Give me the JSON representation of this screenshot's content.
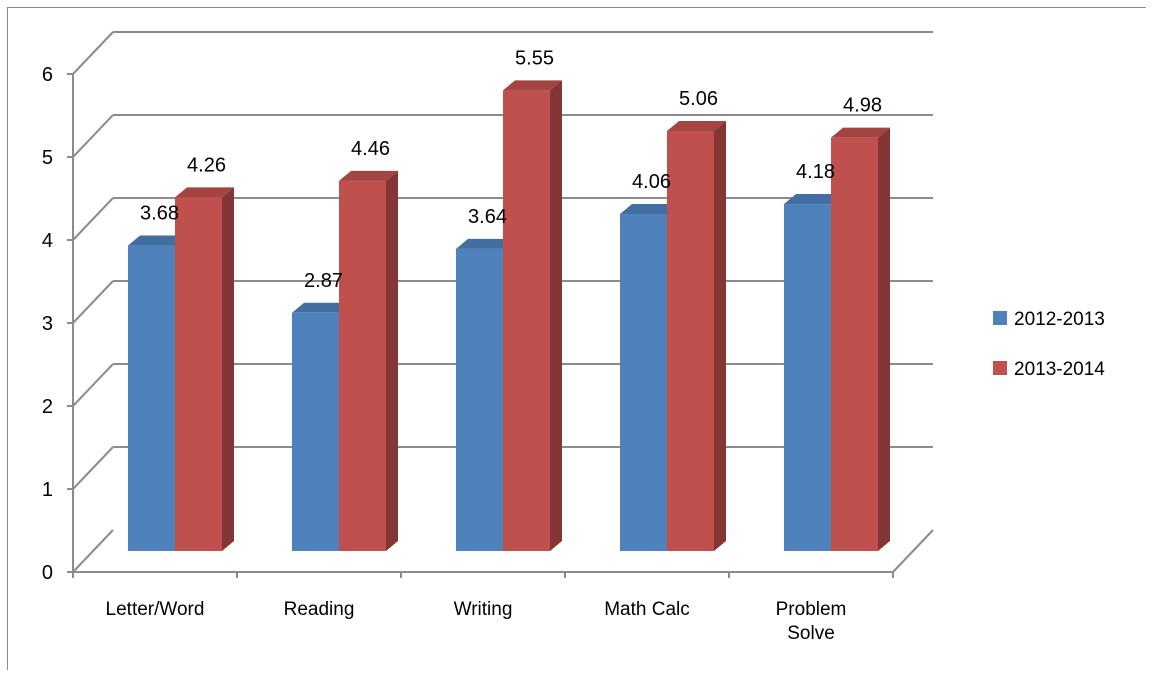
{
  "chart_data": {
    "type": "bar",
    "style": "3d-clustered-column",
    "categories": [
      "Letter/Word",
      "Reading",
      "Writing",
      "Math Calc",
      "Problem Solve"
    ],
    "series": [
      {
        "name": "2012-2013",
        "color": "#4f81bd",
        "values": [
          3.68,
          2.87,
          3.64,
          4.06,
          4.18
        ]
      },
      {
        "name": "2013-2014",
        "color": "#c0504d",
        "values": [
          4.26,
          4.46,
          5.55,
          5.06,
          4.98
        ]
      }
    ],
    "ylim": [
      0,
      6
    ],
    "yticks": [
      0,
      1,
      2,
      3,
      4,
      5,
      6
    ],
    "grid": true,
    "legend": "right",
    "data_labels": true
  }
}
